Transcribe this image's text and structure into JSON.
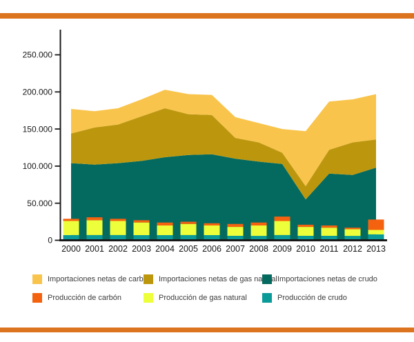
{
  "frame": {
    "border_color": "#DC731F"
  },
  "colors": {
    "coal_imports": "#F9C44C",
    "gas_imports": "#BC970E",
    "crude_imports": "#046A5F",
    "coal_production": "#F5620F",
    "gas_production": "#EDFF3A",
    "crude_production": "#0A9A98",
    "axis": "#1A1A1A",
    "tick_text": "#161616"
  },
  "legend": {
    "items": [
      {
        "label": "Importaciones netas de carbón",
        "color_key": "coal_imports"
      },
      {
        "label": "Importaciones netas de gas natural",
        "color_key": "gas_imports"
      },
      {
        "label": "Importaciones netas de crudo",
        "color_key": "crude_imports"
      },
      {
        "label": "Producción de carbón",
        "color_key": "coal_production"
      },
      {
        "label": "Producción de gas natural",
        "color_key": "gas_production"
      },
      {
        "label": "Producción de crudo",
        "color_key": "crude_production"
      }
    ]
  },
  "chart_data": {
    "type": "stacked-area with stacked-bar overlay",
    "years": [
      "2000",
      "2001",
      "2002",
      "2003",
      "2004",
      "2005",
      "2006",
      "2007",
      "2008",
      "2009",
      "2010",
      "2011",
      "2012",
      "2013"
    ],
    "y_axis": {
      "min": 0,
      "max": 250000,
      "ticks": [
        {
          "value": 0,
          "label": "0"
        },
        {
          "value": 50000,
          "label": "50.000"
        },
        {
          "value": 100000,
          "label": "100.000"
        },
        {
          "value": 150000,
          "label": "150.000"
        },
        {
          "value": 200000,
          "label": "200.000"
        },
        {
          "value": 250000,
          "label": "250.000"
        }
      ]
    },
    "area_series": [
      {
        "name": "Importaciones netas de crudo",
        "color_key": "crude_imports",
        "values": [
          104000,
          102000,
          104000,
          107000,
          112000,
          115000,
          116000,
          110000,
          106000,
          103000,
          55000,
          90000,
          88000,
          98000
        ]
      },
      {
        "name": "Importaciones netas de gas natural",
        "color_key": "gas_imports",
        "values": [
          40000,
          50000,
          52000,
          60000,
          66000,
          55000,
          53000,
          28000,
          26000,
          15000,
          18000,
          32000,
          44000,
          38000
        ]
      },
      {
        "name": "Importaciones netas de carbón",
        "color_key": "coal_imports",
        "values": [
          33000,
          22000,
          22000,
          23000,
          25000,
          27000,
          27000,
          28000,
          26000,
          32000,
          74000,
          65000,
          58000,
          61000
        ]
      }
    ],
    "bar_series": [
      {
        "name": "Producción de crudo",
        "color_key": "crude_production",
        "values": [
          7000,
          7000,
          7000,
          7000,
          7000,
          7000,
          7000,
          6000,
          6000,
          7000,
          6000,
          6000,
          6000,
          8000
        ]
      },
      {
        "name": "Producción de gas natural",
        "color_key": "gas_production",
        "values": [
          19000,
          20000,
          19000,
          17000,
          13000,
          15000,
          13000,
          12000,
          14000,
          19000,
          12000,
          11000,
          9000,
          6000
        ]
      },
      {
        "name": "Producción de carbón",
        "color_key": "coal_production",
        "values": [
          3000,
          4000,
          3000,
          3000,
          4000,
          3000,
          3000,
          4000,
          4000,
          6000,
          3000,
          3000,
          2000,
          14000
        ]
      }
    ],
    "grid": "off",
    "legend_position": "bottom"
  }
}
